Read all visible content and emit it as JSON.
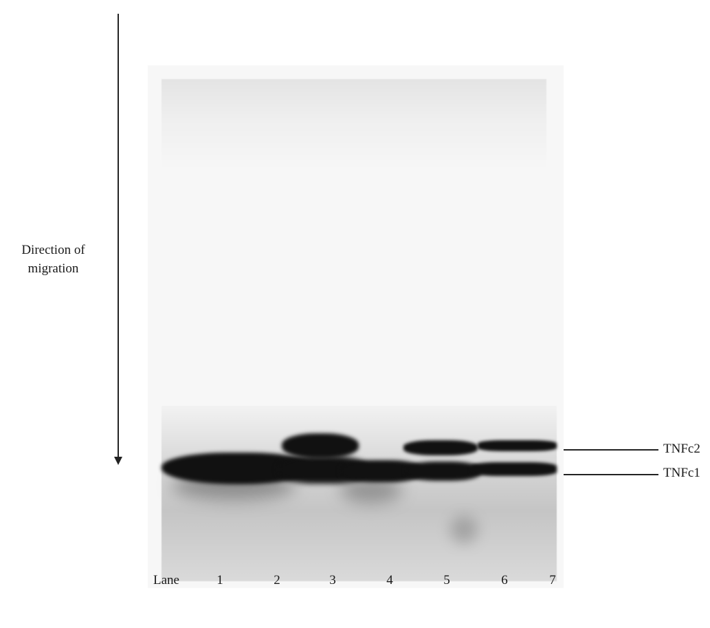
{
  "figure": {
    "direction_label": [
      "Direction of",
      "migration"
    ],
    "band_labels": {
      "upper": "TNFc2",
      "lower": "TNFc1"
    },
    "lane_label": "Lane",
    "lanes": [
      "1",
      "2",
      "3",
      "4",
      "5",
      "6",
      "7"
    ]
  }
}
